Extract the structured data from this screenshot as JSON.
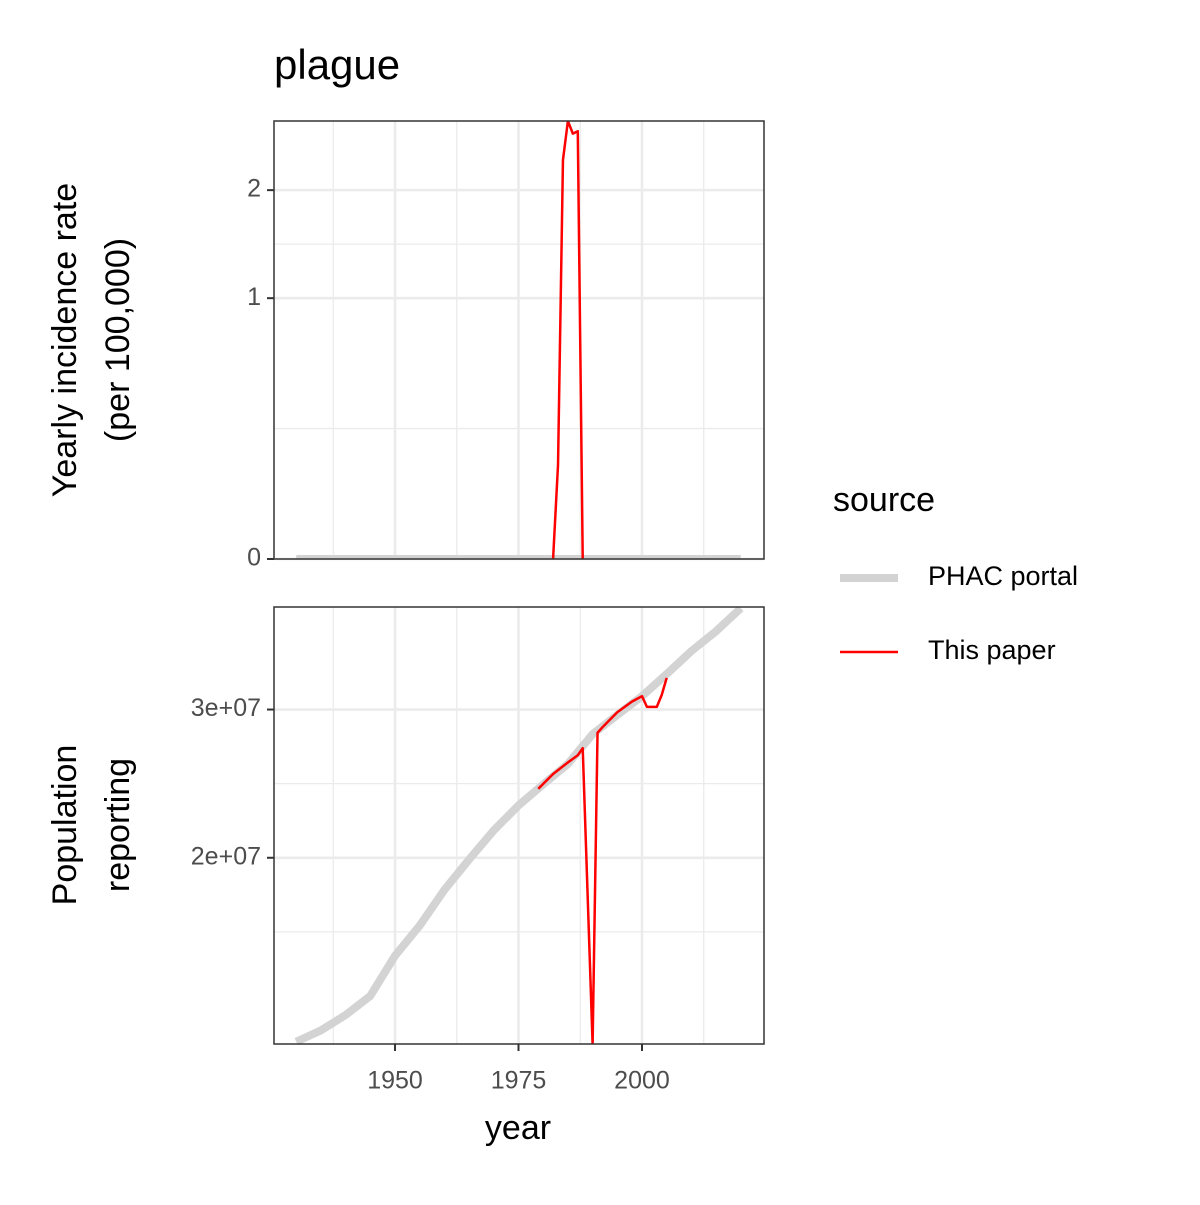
{
  "chart_data": [
    {
      "type": "line",
      "title": "plague",
      "ylabel": [
        "Yearly incidence rate",
        "(per 100,000)"
      ],
      "yscale": "sqrt",
      "grid": true,
      "xlim": [
        1925.5,
        2024.7
      ],
      "xticks": [
        1950,
        1975,
        2000
      ],
      "ylim": [
        0,
        2.82
      ],
      "yticks": [
        0,
        1,
        2
      ],
      "legend": {
        "title": "source",
        "position": "right"
      },
      "series": [
        {
          "name": "PHAC portal",
          "color": "#d3d3d3",
          "linewidth": 8,
          "x": [
            1930,
            1935,
            1940,
            1945,
            1950,
            1955,
            1960,
            1965,
            1970,
            1975,
            1980,
            1985,
            1990,
            1995,
            2000,
            2005,
            2010,
            2015,
            2020
          ],
          "values": [
            0,
            0,
            0,
            0,
            0,
            0,
            0,
            0,
            0,
            0,
            0,
            0,
            0,
            0,
            0,
            0,
            0,
            0,
            0
          ]
        },
        {
          "name": "This paper",
          "color": "#ff0000",
          "linewidth": 2.5,
          "x": [
            1982,
            1983,
            1984,
            1985,
            1986,
            1987,
            1988
          ],
          "values": [
            0,
            0.13,
            2.34,
            2.82,
            2.66,
            2.69,
            0
          ]
        }
      ]
    },
    {
      "type": "line",
      "xlabel": "year",
      "ylabel": [
        "Population",
        "reporting"
      ],
      "yscale": "sqrt",
      "grid": true,
      "xlim": [
        1925.5,
        2024.7
      ],
      "xticks": [
        1950,
        1975,
        2000
      ],
      "ylim": [
        10300000,
        38100000
      ],
      "yticks": [
        {
          "value": 20000000,
          "label": "2e+07"
        },
        {
          "value": 30000000,
          "label": "3e+07"
        }
      ],
      "series": [
        {
          "color": "#d3d3d3",
          "linewidth": 8,
          "x": [
            1930,
            1935,
            1940,
            1945,
            1950,
            1955,
            1960,
            1965,
            1970,
            1975,
            1980,
            1985,
            1990,
            1995,
            2000,
            2005,
            2010,
            2015,
            2020
          ],
          "values": [
            10400000,
            10900000,
            11600000,
            12500000,
            14500000,
            16100000,
            18100000,
            19900000,
            21700000,
            23300000,
            24700000,
            26100000,
            28200000,
            29600000,
            31000000,
            32700000,
            34500000,
            36100000,
            38000000
          ]
        },
        {
          "color": "#ff0000",
          "linewidth": 2.5,
          "x": [
            1979,
            1982,
            1985,
            1987,
            1988,
            1990,
            1991,
            1992,
            1995,
            1998,
            2000,
            2001,
            2003,
            2004,
            2005
          ],
          "values": [
            24400000,
            25400000,
            26200000,
            26700000,
            27200000,
            10300000,
            28300000,
            28700000,
            29800000,
            30600000,
            31000000,
            30200000,
            30200000,
            31100000,
            32400000
          ]
        }
      ]
    }
  ]
}
